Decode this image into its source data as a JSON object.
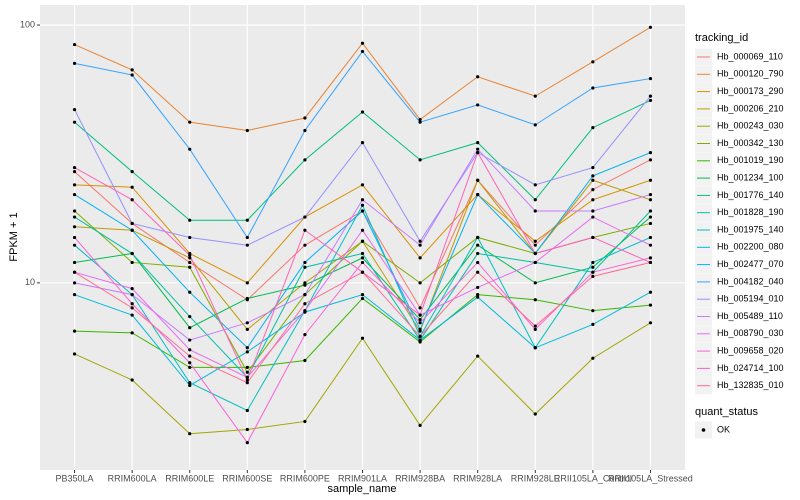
{
  "chart_data": {
    "type": "line",
    "x_label": "sample_name",
    "y_label": "FPKM + 1",
    "log_y": true,
    "grid": true,
    "legend_title": "tracking_id",
    "legend2_title": "quant_status",
    "legend2_items": [
      "OK"
    ],
    "categories": [
      "PB350LA",
      "RRIM600LA",
      "RRIM600LE",
      "RRIM600SE",
      "RRIM600PE",
      "RRIM901LA",
      "RRIM928BA",
      "RRIM928LA",
      "RRIM928LE",
      "RRII105LA_Control",
      "RRII105LA_Stressed"
    ],
    "ylim": [
      1.88,
      119.6
    ],
    "yticks": [
      10,
      100
    ],
    "series": [
      {
        "name": "Hb_000069_110",
        "color": "#F8766D",
        "values": [
          27,
          17,
          12,
          8.6,
          14,
          19,
          8.0,
          25,
          14,
          23,
          30
        ]
      },
      {
        "name": "Hb_000120_790",
        "color": "#EA8331",
        "values": [
          84,
          67,
          42,
          39,
          43.6,
          85,
          43,
          63,
          53,
          72,
          98
        ]
      },
      {
        "name": "Hb_000173_290",
        "color": "#D89000",
        "values": [
          24,
          23.5,
          13,
          10,
          18,
          24,
          12.5,
          22,
          14.5,
          21,
          25
        ]
      },
      {
        "name": "Hb_000206_210",
        "color": "#C09B00",
        "values": [
          16.5,
          16,
          12.5,
          6.6,
          10,
          14.5,
          6.5,
          25,
          13,
          25,
          21
        ]
      },
      {
        "name": "Hb_000243_030",
        "color": "#A3A500",
        "values": [
          5.3,
          4.2,
          2.6,
          2.7,
          2.9,
          6.1,
          2.8,
          5.2,
          3.1,
          5.1,
          7.0
        ]
      },
      {
        "name": "Hb_000342_130",
        "color": "#7CAE00",
        "values": [
          19,
          12,
          11.5,
          4.5,
          9,
          14.5,
          10,
          15,
          13,
          15,
          17
        ]
      },
      {
        "name": "Hb_001019_190",
        "color": "#39B600",
        "values": [
          6.5,
          6.4,
          4.7,
          4.7,
          5.0,
          8.7,
          5.9,
          9.0,
          8.6,
          7.8,
          8.2
        ]
      },
      {
        "name": "Hb_001234_100",
        "color": "#00BB4E",
        "values": [
          12,
          13,
          6.7,
          8.7,
          9.8,
          12.5,
          7.2,
          14,
          10,
          11.5,
          18
        ]
      },
      {
        "name": "Hb_001776_140",
        "color": "#00BF7D",
        "values": [
          42,
          27,
          17.5,
          17.5,
          30,
          46,
          30,
          35,
          21,
          40,
          51
        ]
      },
      {
        "name": "Hb_001828_190",
        "color": "#00C1A3",
        "values": [
          18,
          13,
          7.4,
          4.3,
          11.5,
          13,
          6.0,
          13,
          12,
          11,
          19
        ]
      },
      {
        "name": "Hb_001975_140",
        "color": "#00BFC4",
        "values": [
          14,
          9,
          4.1,
          3.2,
          7.8,
          20,
          6.2,
          15,
          5.6,
          12,
          15
        ]
      },
      {
        "name": "Hb_002200_080",
        "color": "#00BAE0",
        "values": [
          9,
          7.5,
          4.0,
          5.4,
          7.7,
          9.0,
          6.0,
          8.8,
          5.6,
          6.9,
          9.2
        ]
      },
      {
        "name": "Hb_002477_070",
        "color": "#00B0F6",
        "values": [
          22,
          16,
          9.2,
          5.6,
          12,
          19,
          6.6,
          22,
          13,
          26,
          32
        ]
      },
      {
        "name": "Hb_004182_040",
        "color": "#35A2FF",
        "values": [
          71,
          64,
          33,
          15,
          39,
          79,
          42,
          49,
          41,
          57,
          62
        ]
      },
      {
        "name": "Hb_005194_010",
        "color": "#9590FF",
        "values": [
          47,
          17,
          15,
          14,
          18,
          35,
          14.5,
          32,
          24,
          28,
          53
        ]
      },
      {
        "name": "Hb_005489_110",
        "color": "#C77CFF",
        "values": [
          10,
          9,
          6,
          7,
          9,
          21,
          14,
          33,
          19,
          19,
          22
        ]
      },
      {
        "name": "Hb_008790_030",
        "color": "#E76BF3",
        "values": [
          11,
          9.5,
          5.5,
          4.3,
          7.8,
          16,
          7.5,
          9.6,
          12,
          18,
          14
        ]
      },
      {
        "name": "Hb_009658_020",
        "color": "#FA62DB",
        "values": [
          15,
          8.3,
          4.9,
          2.4,
          6.3,
          12,
          7.0,
          12,
          6.6,
          11,
          12.5
        ]
      },
      {
        "name": "Hb_024714_100",
        "color": "#FF62BC",
        "values": [
          28,
          21,
          12.8,
          4.2,
          16,
          11,
          7.5,
          32,
          13,
          15,
          12
        ]
      },
      {
        "name": "Hb_132835_010",
        "color": "#FF6C91",
        "values": [
          11,
          8,
          5.2,
          4.1,
          8.3,
          11,
          6.2,
          11,
          6.8,
          10.6,
          12
        ]
      }
    ]
  }
}
